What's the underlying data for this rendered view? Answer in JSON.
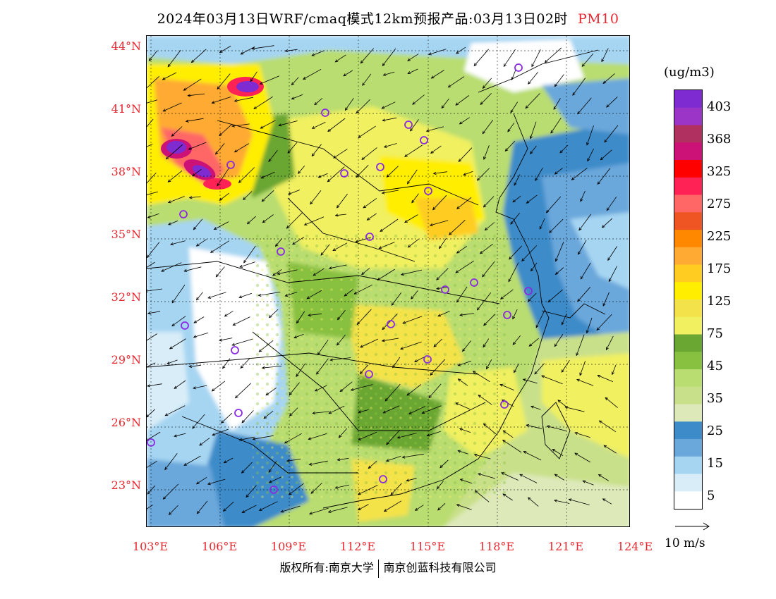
{
  "header": {
    "title": "2024年03月13日WRF/cmaq模式12km预报产品:03月13日02时",
    "variable": "PM10"
  },
  "map": {
    "latitude_labels": [
      "44°N",
      "41°N",
      "38°N",
      "35°N",
      "32°N",
      "29°N",
      "26°N",
      "23°N"
    ],
    "longitude_labels": [
      "103°E",
      "106°E",
      "109°E",
      "112°E",
      "115°E",
      "118°E",
      "121°E",
      "124°E"
    ]
  },
  "legend": {
    "unit": "(ug/m3)",
    "tick_labels": [
      "403",
      "368",
      "325",
      "275",
      "225",
      "175",
      "125",
      "75",
      "45",
      "35",
      "25",
      "15",
      "5"
    ],
    "colors": [
      "#7e2bd2",
      "#9a35c8",
      "#b03060",
      "#cc1177",
      "#ff0000",
      "#ff2255",
      "#ff6666",
      "#ee5522",
      "#ff8800",
      "#ffaa33",
      "#ffcc22",
      "#ffee00",
      "#f4e24a",
      "#f0f060",
      "#6aa632",
      "#88c040",
      "#b9dd70",
      "#c9e08a",
      "#dde9b9",
      "#3d8bc9",
      "#6aa7db",
      "#a6d5f2",
      "#d8edf8",
      "#ffffff"
    ],
    "wind_reference_label": "10 m/s"
  },
  "footer": {
    "copyright_left": "版权所有:南京大学",
    "copyright_right": "南京创蓝科技有限公司"
  }
}
